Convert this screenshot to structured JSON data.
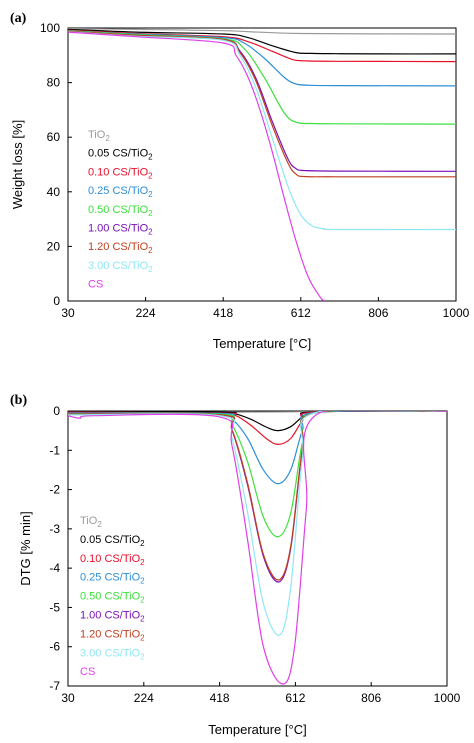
{
  "chart_data": [
    {
      "panel_label": "(a)",
      "type": "line",
      "xlabel": "Temperature [°C]",
      "ylabel": "Weight loss [%]",
      "xlim": [
        30,
        1000
      ],
      "ylim": [
        0,
        100
      ],
      "xticks": [
        "30",
        "224",
        "418",
        "612",
        "806",
        "1000"
      ],
      "yticks": [
        "0",
        "20",
        "40",
        "60",
        "80",
        "100"
      ],
      "grid": false,
      "legend_position": "left",
      "series": [
        {
          "name": "TiO2",
          "color": "#9a9a9a",
          "x": [
            30,
            200,
            418,
            612,
            1000
          ],
          "y": [
            99.8,
            99.5,
            99.0,
            98.0,
            97.8
          ]
        },
        {
          "name": "0.05 CS/TiO2",
          "color": "#000000",
          "x": [
            30,
            200,
            418,
            480,
            540,
            600,
            640,
            700,
            800,
            1000
          ],
          "y": [
            99.5,
            98.5,
            97.8,
            96.5,
            93.5,
            91.0,
            90.7,
            90.6,
            90.5,
            90.5
          ]
        },
        {
          "name": "0.10 CS/TiO2",
          "color": "#e8102a",
          "x": [
            30,
            200,
            418,
            480,
            540,
            590,
            620,
            700,
            1000
          ],
          "y": [
            99.2,
            98.0,
            96.8,
            95.0,
            91.5,
            88.5,
            88.0,
            87.8,
            87.7
          ]
        },
        {
          "name": "0.25 CS/TiO2",
          "color": "#2e8fd8",
          "x": [
            30,
            200,
            418,
            470,
            520,
            570,
            600,
            640,
            700,
            1000
          ],
          "y": [
            99.0,
            97.8,
            96.5,
            94.5,
            89.0,
            82.0,
            79.5,
            79.0,
            78.9,
            78.8
          ]
        },
        {
          "name": "0.50 CS/TiO2",
          "color": "#3ee03e",
          "x": [
            30,
            200,
            418,
            470,
            520,
            570,
            600,
            640,
            700,
            1000
          ],
          "y": [
            99.0,
            97.6,
            96.0,
            92.5,
            82.0,
            69.0,
            65.5,
            65.0,
            64.9,
            64.8
          ]
        },
        {
          "name": "1.00 CS/TiO2",
          "color": "#7a10b8",
          "x": [
            30,
            200,
            418,
            460,
            500,
            540,
            580,
            600,
            620,
            700,
            1000
          ],
          "y": [
            98.8,
            97.3,
            95.8,
            91.5,
            81.5,
            66.0,
            52.0,
            48.5,
            47.8,
            47.6,
            47.5
          ]
        },
        {
          "name": "1.20 CS/TiO2",
          "color": "#c04020",
          "x": [
            30,
            200,
            418,
            460,
            500,
            540,
            580,
            600,
            620,
            700,
            1000
          ],
          "y": [
            98.8,
            97.3,
            95.8,
            91.0,
            80.5,
            64.5,
            50.5,
            46.5,
            45.6,
            45.5,
            45.5
          ]
        },
        {
          "name": "3.00 CS/TiO2",
          "color": "#8ee8f4",
          "x": [
            30,
            200,
            418,
            460,
            500,
            540,
            580,
            610,
            640,
            670,
            700,
            1000
          ],
          "y": [
            98.6,
            97.0,
            95.5,
            90.0,
            78.0,
            60.0,
            42.0,
            32.0,
            27.5,
            26.5,
            26.2,
            26.2
          ]
        },
        {
          "name": "CS",
          "color": "#e040e8",
          "x": [
            30,
            200,
            418,
            450,
            480,
            510,
            540,
            570,
            600,
            630,
            660,
            672
          ],
          "y": [
            98.5,
            96.8,
            94.5,
            90.0,
            82.0,
            70.0,
            55.0,
            38.0,
            22.0,
            9.0,
            1.5,
            0.0
          ]
        }
      ]
    },
    {
      "panel_label": "(b)",
      "type": "line",
      "xlabel": "Temperature [°C]",
      "ylabel": "DTG [% min]",
      "xlim": [
        30,
        1000
      ],
      "ylim": [
        -7,
        0
      ],
      "xticks": [
        "30",
        "224",
        "418",
        "612",
        "806",
        "1000"
      ],
      "yticks": [
        "0",
        "-1",
        "-2",
        "-3",
        "-4",
        "-5",
        "-6",
        "-7"
      ],
      "grid": false,
      "legend_position": "left",
      "series": [
        {
          "name": "TiO2",
          "color": "#9a9a9a",
          "x": [
            30,
            100,
            200,
            418,
            612,
            800,
            1000
          ],
          "y": [
            0.0,
            -0.02,
            -0.03,
            -0.03,
            -0.02,
            0.0,
            0.0
          ]
        },
        {
          "name": "0.05 CS/TiO2",
          "color": "#000000",
          "x": [
            30,
            418,
            460,
            500,
            540,
            568,
            600,
            630,
            660,
            1000
          ],
          "y": [
            0.0,
            -0.03,
            -0.08,
            -0.22,
            -0.42,
            -0.5,
            -0.4,
            -0.15,
            -0.02,
            0.0
          ]
        },
        {
          "name": "0.10 CS/TiO2",
          "color": "#e8102a",
          "x": [
            30,
            418,
            460,
            500,
            540,
            568,
            600,
            630,
            660,
            1000
          ],
          "y": [
            -0.03,
            -0.05,
            -0.12,
            -0.38,
            -0.72,
            -0.85,
            -0.7,
            -0.25,
            -0.03,
            0.0
          ]
        },
        {
          "name": "0.25 CS/TiO2",
          "color": "#2e8fd8",
          "x": [
            30,
            418,
            450,
            490,
            530,
            568,
            600,
            630,
            660,
            1000
          ],
          "y": [
            -0.05,
            -0.06,
            -0.2,
            -0.7,
            -1.5,
            -1.85,
            -1.5,
            -0.5,
            -0.04,
            0.0
          ]
        },
        {
          "name": "0.50 CS/TiO2",
          "color": "#3ee03e",
          "x": [
            30,
            418,
            450,
            490,
            530,
            568,
            600,
            630,
            660,
            1000
          ],
          "y": [
            -0.07,
            -0.08,
            -0.35,
            -1.3,
            -2.7,
            -3.2,
            -2.6,
            -0.8,
            -0.05,
            0.0
          ]
        },
        {
          "name": "1.00 CS/TiO2",
          "color": "#7a10b8",
          "x": [
            30,
            418,
            450,
            490,
            530,
            570,
            600,
            630,
            660,
            1000
          ],
          "y": [
            -0.08,
            -0.1,
            -0.5,
            -1.9,
            -3.7,
            -4.35,
            -3.5,
            -1.0,
            -0.05,
            0.0
          ]
        },
        {
          "name": "1.20 CS/TiO2",
          "color": "#c04020",
          "x": [
            30,
            418,
            450,
            490,
            530,
            570,
            600,
            630,
            660,
            1000
          ],
          "y": [
            -0.08,
            -0.1,
            -0.48,
            -1.85,
            -3.65,
            -4.3,
            -3.45,
            -0.95,
            -0.05,
            0.0
          ]
        },
        {
          "name": "3.00 CS/TiO2",
          "color": "#8ee8f4",
          "x": [
            30,
            418,
            450,
            490,
            530,
            572,
            600,
            630,
            660,
            1000
          ],
          "y": [
            -0.1,
            -0.12,
            -0.7,
            -2.6,
            -4.9,
            -5.7,
            -4.5,
            -1.2,
            -0.05,
            0.0
          ]
        },
        {
          "name": "CS",
          "color": "#e040e8",
          "x": [
            30,
            60,
            100,
            418,
            450,
            490,
            530,
            580,
            610,
            640,
            665,
            1000
          ],
          "y": [
            -0.12,
            -0.18,
            -0.12,
            -0.15,
            -0.9,
            -3.3,
            -6.0,
            -6.95,
            -6.0,
            -2.5,
            -0.1,
            0.0
          ]
        }
      ]
    }
  ]
}
